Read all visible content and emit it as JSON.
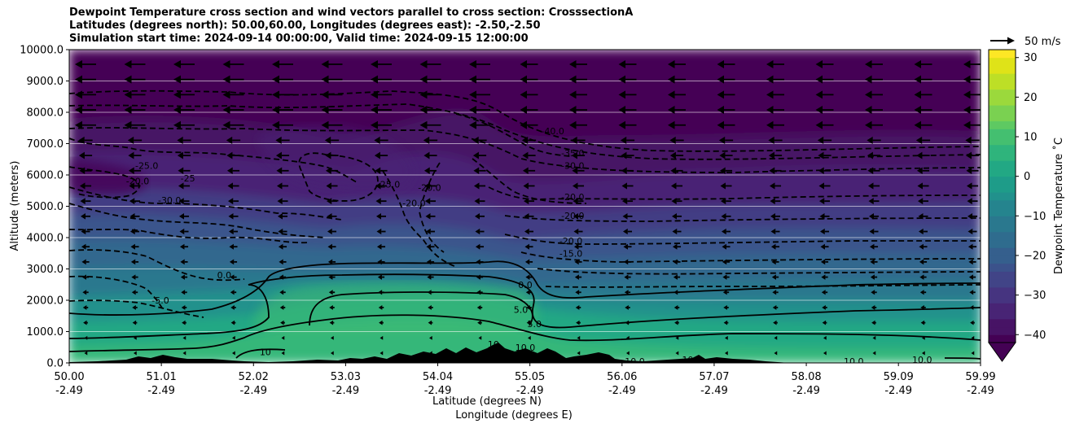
{
  "title": {
    "line1": "Dewpoint Temperature cross section and wind vectors parallel to cross section: CrosssectionA",
    "line2": "Latitudes (degrees north): 50.00,60.00, Longitudes (degrees east): -2.50,-2.50",
    "line3": "Simulation start time: 2024-09-14 00:00:00, Valid time: 2024-09-15 12:00:00"
  },
  "chart_data": {
    "type": "heatmap",
    "ylabel": "Altitude (meters)",
    "xlabel_lat": "Latitude (degrees N)",
    "xlabel_lon": "Longitude (degrees E)",
    "ylim": [
      0,
      10000
    ],
    "xlim": [
      50.0,
      59.99
    ],
    "grid": "horizontal",
    "y_ticks": [
      "0.0",
      "1000.0",
      "2000.0",
      "3000.0",
      "4000.0",
      "5000.0",
      "6000.0",
      "7000.0",
      "8000.0",
      "9000.0",
      "10000.0"
    ],
    "y_tick_values": [
      0,
      1000,
      2000,
      3000,
      4000,
      5000,
      6000,
      7000,
      8000,
      9000,
      10000
    ],
    "x_ticks": [
      {
        "lat": "50.00",
        "lon": "-2.49",
        "value": 50.0
      },
      {
        "lat": "51.01",
        "lon": "-2.49",
        "value": 51.01
      },
      {
        "lat": "52.02",
        "lon": "-2.49",
        "value": 52.02
      },
      {
        "lat": "53.03",
        "lon": "-2.49",
        "value": 53.03
      },
      {
        "lat": "54.04",
        "lon": "-2.49",
        "value": 54.04
      },
      {
        "lat": "55.05",
        "lon": "-2.49",
        "value": 55.05
      },
      {
        "lat": "56.06",
        "lon": "-2.49",
        "value": 56.06
      },
      {
        "lat": "57.07",
        "lon": "-2.49",
        "value": 57.07
      },
      {
        "lat": "58.08",
        "lon": "-2.49",
        "value": 58.08
      },
      {
        "lat": "59.09",
        "lon": "-2.49",
        "value": 59.09
      },
      {
        "lat": "59.99",
        "lon": "-2.49",
        "value": 59.99
      }
    ],
    "colorbar": {
      "label": "Dewpoint Temperature ˚C",
      "ticks": [
        "−40",
        "−30",
        "−20",
        "−10",
        "0",
        "10",
        "20",
        "30"
      ],
      "tick_values": [
        -40,
        -30,
        -20,
        -10,
        0,
        10,
        20,
        30
      ],
      "range": [
        -42,
        32
      ],
      "extend": "min",
      "colormap": "viridis"
    },
    "wind_key": {
      "label": "50 m/s"
    },
    "contour_labels": [
      {
        "text": "-40.0",
        "lat": 55.3,
        "alt": 7400
      },
      {
        "text": "-35.0",
        "lat": 55.52,
        "alt": 6700
      },
      {
        "text": "-30.0",
        "lat": 55.52,
        "alt": 6300
      },
      {
        "text": "-20.0",
        "lat": 55.52,
        "alt": 5300
      },
      {
        "text": "-20.0",
        "lat": 55.52,
        "alt": 4700
      },
      {
        "text": "-20.0",
        "lat": 55.5,
        "alt": 3900
      },
      {
        "text": "-15.0",
        "lat": 55.5,
        "alt": 3500
      },
      {
        "text": "-25.0",
        "lat": 50.85,
        "alt": 6300
      },
      {
        "text": "-20.0",
        "lat": 50.75,
        "alt": 5800
      },
      {
        "text": "-25",
        "lat": 51.3,
        "alt": 5900
      },
      {
        "text": "-30.0",
        "lat": 51.1,
        "alt": 5200
      },
      {
        "text": "-25.0",
        "lat": 53.5,
        "alt": 5700
      },
      {
        "text": "-20.0",
        "lat": 53.95,
        "alt": 5600
      },
      {
        "text": "-20.0",
        "lat": 53.78,
        "alt": 5100
      },
      {
        "text": "-5.0",
        "lat": 51.0,
        "alt": 2000
      },
      {
        "text": "0.0",
        "lat": 51.7,
        "alt": 2800
      },
      {
        "text": "0.0",
        "lat": 55.0,
        "alt": 2500
      },
      {
        "text": "5.0",
        "lat": 54.95,
        "alt": 1700
      },
      {
        "text": "5.0",
        "lat": 55.1,
        "alt": 1250
      },
      {
        "text": "10",
        "lat": 52.15,
        "alt": 350
      },
      {
        "text": "10",
        "lat": 54.65,
        "alt": 600
      },
      {
        "text": "10.0",
        "lat": 55.0,
        "alt": 500
      },
      {
        "text": "10.0",
        "lat": 56.2,
        "alt": 50
      },
      {
        "text": "10",
        "lat": 56.78,
        "alt": 100
      },
      {
        "text": "10.0",
        "lat": 58.6,
        "alt": 50
      },
      {
        "text": "10.0",
        "lat": 59.35,
        "alt": 100
      }
    ]
  }
}
